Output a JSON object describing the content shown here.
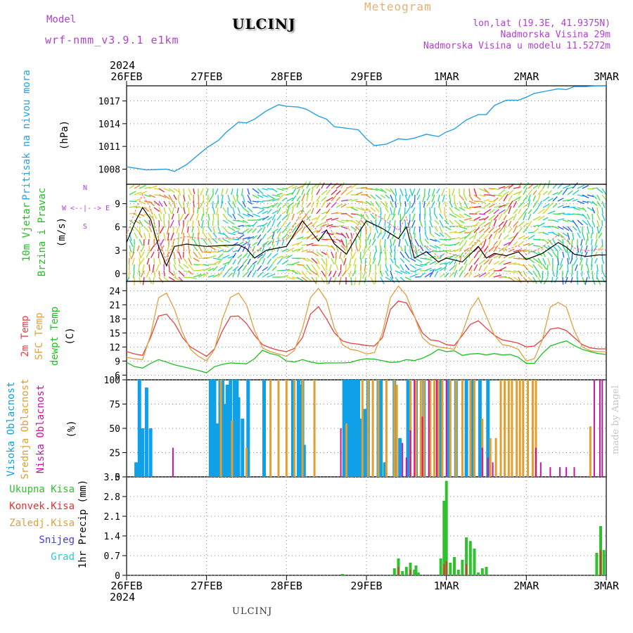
{
  "header": {
    "model_label": "Model",
    "model_name": "wrf-nmm_v3.9.1  e1km",
    "title": "ULCINJ",
    "meteogram_label": "Meteogram",
    "lonlat": "lon,lat (19.3E, 41.9375N)",
    "elevation": "Nadmorska Visina 29m",
    "model_elevation": "Nadmorska Visina u modelu 11.5272m"
  },
  "footer": {
    "station": "ULCINJ",
    "credit": "made by Angel"
  },
  "time_axis": {
    "year_top": "2024",
    "year_bottom": "2024",
    "labels": [
      "26FEB",
      "27FEB",
      "28FEB",
      "29FEB",
      "1MAR",
      "2MAR",
      "3MAR"
    ]
  },
  "colors": {
    "pressure": "#2aa0e0",
    "temp2m": "#e84040",
    "sfc_temp": "#e0a040",
    "dewpt": "#20c020",
    "high_cloud": "#10a0e8",
    "mid_cloud": "#e0a030",
    "low_cloud": "#d010a0",
    "total_precip": "#30c030",
    "conv_precip": "#e83030",
    "snow": "#4040e0",
    "hail": "#30c8c8"
  },
  "chart_data": [
    {
      "type": "line",
      "panel": "pressure",
      "ylabel_lines": [
        "Pritisak na nivou mora",
        "(hPa)"
      ],
      "ylim": [
        1006,
        1019
      ],
      "yticks": [
        1008,
        1011,
        1014,
        1017
      ],
      "grid": true,
      "series": [
        {
          "x_days": [
            0,
            0.25,
            0.5,
            0.6,
            0.75,
            1.0,
            1.15,
            1.25,
            1.4,
            1.5,
            1.6,
            1.75,
            1.9,
            2.0,
            2.15,
            2.25,
            2.4,
            2.5,
            2.6,
            2.75,
            2.9,
            3.0,
            3.1,
            3.25,
            3.4,
            3.5,
            3.6,
            3.75,
            3.9,
            4.0,
            4.1,
            4.25,
            4.4,
            4.5,
            4.6,
            4.75,
            4.9,
            5.0,
            5.1,
            5.25,
            5.4,
            5.5,
            5.6,
            5.75,
            5.9,
            6.0
          ],
          "values": [
            1008.3,
            1007.9,
            1008.0,
            1007.7,
            1008.6,
            1010.8,
            1011.8,
            1012.9,
            1014.2,
            1014.1,
            1014.6,
            1015.7,
            1016.5,
            1016.3,
            1016.2,
            1015.9,
            1015.0,
            1014.6,
            1013.6,
            1013.4,
            1013.2,
            1012.0,
            1011.1,
            1011.3,
            1012.0,
            1011.9,
            1012.1,
            1012.6,
            1012.3,
            1012.9,
            1013.3,
            1014.5,
            1015.2,
            1015.2,
            1016.4,
            1017.1,
            1017.1,
            1017.5,
            1018.0,
            1018.3,
            1018.6,
            1018.5,
            1018.9,
            1018.9,
            1019.0,
            1019.0
          ]
        }
      ]
    },
    {
      "type": "line",
      "panel": "wind",
      "ylabel_lines": [
        "10m Vjetar",
        "Brzina i Pravac",
        "(m/s)"
      ],
      "compass": [
        "W",
        "<-",
        "-|-",
        "->",
        "E",
        "N",
        "S"
      ],
      "ylim": [
        -1,
        11.5
      ],
      "yticks": [
        0,
        3,
        6,
        9
      ],
      "grid": true,
      "series": [
        {
          "name": "speed",
          "x_days": [
            0,
            0.1,
            0.2,
            0.3,
            0.4,
            0.5,
            0.6,
            0.75,
            0.9,
            1.0,
            1.2,
            1.4,
            1.5,
            1.6,
            1.75,
            1.9,
            2.0,
            2.2,
            2.4,
            2.5,
            2.6,
            2.75,
            2.9,
            3.0,
            3.2,
            3.4,
            3.5,
            3.6,
            3.75,
            3.9,
            4.0,
            4.2,
            4.4,
            4.5,
            4.6,
            4.75,
            4.9,
            5.0,
            5.2,
            5.4,
            5.5,
            5.6,
            5.75,
            5.9,
            6.0
          ],
          "values": [
            4.0,
            6.5,
            8.5,
            7.0,
            3.5,
            1.0,
            3.5,
            3.8,
            3.6,
            3.5,
            3.6,
            3.7,
            3.2,
            2.0,
            3.0,
            3.3,
            3.5,
            6.8,
            4.2,
            5.6,
            3.8,
            2.5,
            5.2,
            6.8,
            5.8,
            4.5,
            6.0,
            2.0,
            2.8,
            1.5,
            2.0,
            1.5,
            3.5,
            2.0,
            2.6,
            2.3,
            2.8,
            1.8,
            2.6,
            4.0,
            3.4,
            2.5,
            2.2,
            2.4,
            2.4
          ]
        }
      ]
    },
    {
      "type": "line",
      "panel": "temperature",
      "ylabel_lines": [
        "2m Temp",
        "SFC Temp",
        "dewpt Temp",
        "(C)"
      ],
      "ylim": [
        5,
        26
      ],
      "yticks": [
        6,
        9,
        12,
        15,
        18,
        21,
        24
      ],
      "grid": true,
      "x_days": [
        0,
        0.1,
        0.2,
        0.3,
        0.4,
        0.5,
        0.6,
        0.7,
        0.8,
        0.9,
        1.0,
        1.1,
        1.2,
        1.3,
        1.4,
        1.5,
        1.6,
        1.7,
        1.8,
        1.9,
        2.0,
        2.1,
        2.2,
        2.3,
        2.4,
        2.5,
        2.6,
        2.7,
        2.8,
        2.9,
        3.0,
        3.1,
        3.2,
        3.3,
        3.4,
        3.5,
        3.6,
        3.7,
        3.8,
        3.9,
        4.0,
        4.1,
        4.2,
        4.3,
        4.4,
        4.5,
        4.6,
        4.7,
        4.8,
        4.9,
        5.0,
        5.1,
        5.2,
        5.3,
        5.4,
        5.5,
        5.6,
        5.7,
        5.8,
        5.9,
        6.0
      ],
      "series": [
        {
          "name": "2m Temp",
          "values": [
            11,
            10.5,
            10.2,
            14,
            18.6,
            19,
            17,
            14,
            12,
            11,
            10,
            11.6,
            15.5,
            18.5,
            18.6,
            17,
            14.5,
            12.5,
            11.8,
            11.3,
            11,
            11.7,
            14,
            19,
            20.6,
            18,
            15,
            13.3,
            12.8,
            12.6,
            12.3,
            12.2,
            14,
            20,
            21.8,
            21.4,
            18.5,
            15,
            13.5,
            13.3,
            12.5,
            12.3,
            14.5,
            16.8,
            17.6,
            16,
            14.5,
            13.5,
            13.2,
            12.8,
            12,
            12.2,
            13.6,
            15.8,
            16.1,
            15.5,
            14,
            12.5,
            11.8,
            11.6,
            11.6
          ]
        },
        {
          "name": "SFC Temp",
          "values": [
            9.8,
            9.5,
            9.3,
            14.5,
            22.5,
            23.5,
            20,
            15,
            11.5,
            10,
            9,
            11.5,
            18,
            22.6,
            23.5,
            21,
            15.5,
            11.8,
            11,
            10.5,
            10,
            11.3,
            16,
            22.5,
            24.5,
            22,
            16,
            12.5,
            11.5,
            11.2,
            10.5,
            10.8,
            15,
            22.5,
            25,
            23,
            18.5,
            14,
            12.5,
            12,
            11.8,
            11.5,
            15,
            20,
            22.5,
            18.5,
            14.5,
            12.5,
            12.2,
            11.5,
            9,
            9.5,
            13.5,
            20.5,
            21.5,
            20.5,
            15.5,
            12,
            11.2,
            11,
            11
          ]
        },
        {
          "name": "dewpt Temp",
          "values": [
            8.7,
            7.8,
            7.5,
            8.5,
            9.3,
            8.8,
            8.2,
            7.8,
            7.4,
            7,
            6.5,
            7.8,
            8.3,
            8.6,
            8.5,
            8.4,
            9.5,
            11.3,
            10.6,
            10.2,
            9,
            8.8,
            9.3,
            8.8,
            8.5,
            8.6,
            8.6,
            8.6,
            8.7,
            9.2,
            9.5,
            9.4,
            9.1,
            8.7,
            8.8,
            9.3,
            9.1,
            9.6,
            10.4,
            11.5,
            11,
            11.2,
            10.2,
            10.5,
            10.6,
            10.3,
            10.6,
            10.3,
            10.4,
            9.8,
            8.5,
            8.5,
            10.6,
            12.2,
            12.8,
            13.3,
            12.3,
            11.5,
            11,
            10.6,
            10.4
          ]
        }
      ]
    },
    {
      "type": "bar",
      "panel": "clouds",
      "ylabel_lines": [
        "Visoka Oblacnost",
        "Srednja Oblacnost",
        "Niska Oblacnost",
        "(%)"
      ],
      "ylim": [
        0,
        100
      ],
      "yticks": [
        0,
        25,
        50,
        75,
        100
      ],
      "grid": true,
      "series": [
        {
          "name": "Visoka Oblacnost",
          "x_days": [
            0.12,
            0.16,
            0.2,
            0.25,
            0.3,
            1.05,
            1.08,
            1.1,
            1.13,
            1.17,
            1.2,
            1.23,
            1.26,
            1.3,
            1.35,
            1.38,
            1.4,
            1.45,
            2.72,
            2.74,
            2.76,
            2.78,
            2.8,
            2.82,
            2.84,
            2.86,
            2.88,
            2.9,
            2.93,
            2.97,
            3.0,
            3.02,
            3.35,
            3.42,
            3.52,
            3.62,
            3.72,
            3.92,
            4.02,
            4.12,
            4.25,
            4.32,
            4.42,
            4.52,
            2.08,
            2.15,
            2.18,
            2.2,
            2.22,
            1.72,
            1.52,
            3.15,
            3.18,
            3.23
          ],
          "values": [
            15,
            100,
            50,
            92,
            50,
            100,
            100,
            100,
            55,
            100,
            100,
            75,
            95,
            100,
            100,
            100,
            82,
            60,
            100,
            100,
            100,
            100,
            100,
            100,
            100,
            100,
            100,
            100,
            60,
            70,
            70,
            100,
            100,
            40,
            100,
            100,
            100,
            100,
            100,
            100,
            100,
            100,
            100,
            100,
            100,
            100,
            95,
            100,
            33,
            100,
            100,
            100,
            100,
            15
          ]
        },
        {
          "name": "Srednja Oblacnost",
          "x_days": [
            1.18,
            1.32,
            1.5,
            1.8,
            1.9,
            2.0,
            2.1,
            2.2,
            2.35,
            2.75,
            2.95,
            3.02,
            3.08,
            3.15,
            3.25,
            3.35,
            3.38,
            3.55,
            3.62,
            3.68,
            3.72,
            3.8,
            3.85,
            3.9,
            3.95,
            4.05,
            4.12,
            4.2,
            4.3,
            4.35,
            4.45,
            4.55,
            4.62,
            4.68,
            4.73,
            4.78,
            4.82,
            4.88,
            4.92,
            4.96,
            5.02,
            5.08,
            5.12,
            5.8
          ],
          "values": [
            100,
            58,
            30,
            100,
            100,
            100,
            100,
            100,
            100,
            55,
            100,
            100,
            100,
            100,
            100,
            100,
            95,
            100,
            100,
            100,
            100,
            100,
            100,
            100,
            100,
            100,
            100,
            100,
            100,
            100,
            60,
            40,
            40,
            100,
            100,
            100,
            100,
            100,
            100,
            100,
            100,
            100,
            100,
            52
          ]
        },
        {
          "name": "Niska Oblacnost",
          "x_days": [
            0.58,
            2.68,
            3.45,
            3.5,
            3.55,
            3.6,
            3.7,
            3.78,
            3.88,
            4.0,
            4.45,
            4.52,
            4.58,
            5.12,
            5.18,
            5.3,
            5.42,
            5.5,
            5.6,
            5.85,
            5.92,
            5.95
          ],
          "values": [
            30,
            50,
            35,
            20,
            48,
            100,
            62,
            100,
            100,
            100,
            30,
            20,
            15,
            30,
            15,
            10,
            10,
            10,
            10,
            100,
            100,
            100
          ]
        }
      ]
    },
    {
      "type": "bar",
      "panel": "precipitation",
      "ylabel_lines": [
        "1hr Precip (mm)"
      ],
      "legend": [
        "Ukupna Kisa",
        "Konvek.Kisa",
        "Zaledj.Kisa",
        "Snijeg",
        "Grad"
      ],
      "ylim": [
        0,
        3.5
      ],
      "yticks": [
        0,
        0.7,
        1.4,
        2.1,
        2.8,
        3.5
      ],
      "grid": true,
      "series": [
        {
          "name": "Ukupna Kisa",
          "x_days": [
            2.7,
            3.35,
            3.4,
            3.45,
            3.5,
            3.55,
            3.6,
            3.62,
            3.65,
            3.93,
            3.97,
            4.0,
            4.05,
            4.1,
            4.15,
            4.2,
            4.25,
            4.3,
            4.35,
            4.4,
            4.45,
            4.5,
            5.88,
            5.93,
            5.97
          ],
          "values": [
            0.05,
            0.25,
            0.6,
            0.15,
            0.3,
            0.45,
            0.2,
            0.35,
            0.1,
            0.6,
            2.65,
            3.35,
            0.45,
            0.65,
            0.2,
            0.55,
            1.35,
            1.22,
            0.95,
            0.1,
            0.25,
            0.3,
            0.8,
            1.75,
            0.9
          ]
        },
        {
          "name": "Konvek.Kisa",
          "x_days": [
            3.4,
            3.55,
            3.97,
            4.0,
            4.25,
            5.93
          ],
          "values": [
            0.3,
            0.2,
            0.4,
            0.5,
            0.4,
            0.9
          ]
        }
      ]
    }
  ]
}
